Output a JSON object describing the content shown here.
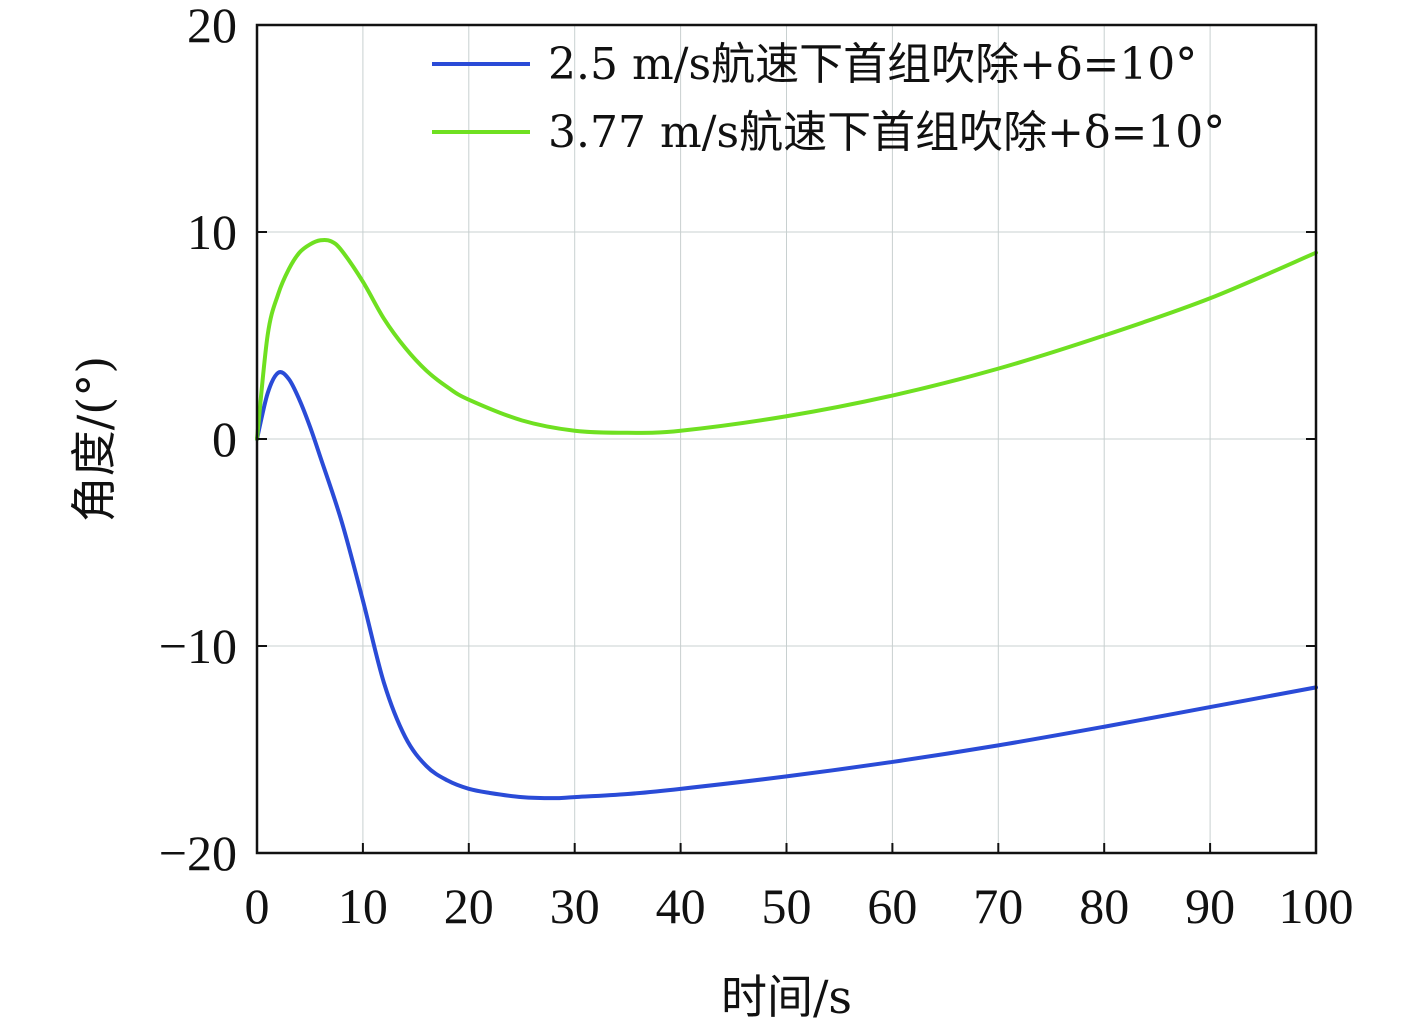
{
  "chart_data": {
    "type": "line",
    "title": "",
    "xlabel": "时间/s",
    "ylabel": "角度/(°)",
    "xlim": [
      0,
      100
    ],
    "ylim": [
      -20,
      20
    ],
    "xticks": [
      0,
      10,
      20,
      30,
      40,
      50,
      60,
      70,
      80,
      90,
      100
    ],
    "yticks": [
      -20,
      -10,
      0,
      10,
      20
    ],
    "ytick_labels": [
      "−20",
      "−10",
      "0",
      "10",
      "20"
    ],
    "grid": true,
    "legend_position": "top-right",
    "series": [
      {
        "name": "2.5 m/s航速下首组吹除+δ=10°",
        "color": "#2a4bd7",
        "x": [
          0,
          1,
          2,
          3,
          4,
          5,
          6,
          8,
          10,
          12,
          14,
          16,
          18,
          20,
          22,
          25,
          28,
          30,
          35,
          40,
          50,
          60,
          70,
          80,
          90,
          100
        ],
        "y": [
          0,
          2.2,
          3.2,
          2.9,
          1.9,
          0.6,
          -0.9,
          -4.0,
          -7.8,
          -11.8,
          -14.4,
          -15.8,
          -16.5,
          -16.9,
          -17.1,
          -17.3,
          -17.35,
          -17.3,
          -17.15,
          -16.9,
          -16.3,
          -15.6,
          -14.8,
          -13.9,
          -12.95,
          -12.0
        ]
      },
      {
        "name": "3.77 m/s航速下首组吹除+δ=10°",
        "color": "#6fe021",
        "x": [
          0,
          1,
          2,
          3,
          4,
          5,
          6,
          7,
          8,
          10,
          12,
          14,
          16,
          18,
          20,
          25,
          30,
          35,
          40,
          50,
          60,
          70,
          80,
          90,
          100
        ],
        "y": [
          0,
          5.0,
          7.0,
          8.2,
          9.0,
          9.4,
          9.6,
          9.55,
          9.1,
          7.6,
          5.8,
          4.4,
          3.3,
          2.5,
          1.9,
          0.9,
          0.4,
          0.3,
          0.4,
          1.1,
          2.1,
          3.4,
          5.0,
          6.8,
          9.0
        ]
      }
    ]
  }
}
